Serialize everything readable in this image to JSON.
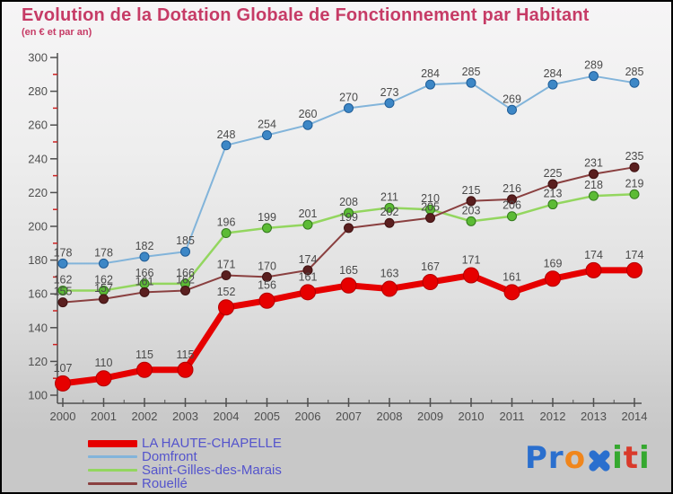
{
  "header": {
    "title": "Evolution de la Dotation Globale de Fonctionnement par Habitant",
    "subtitle": "(en € et par an)",
    "title_color": "#c63b66"
  },
  "chart_data": {
    "type": "line",
    "title": "Evolution de la Dotation Globale de Fonctionnement par Habitant",
    "subtitle": "(en € et par an)",
    "xlabel": "",
    "ylabel": "",
    "x": [
      2000,
      2001,
      2002,
      2003,
      2004,
      2005,
      2006,
      2007,
      2008,
      2009,
      2010,
      2011,
      2012,
      2013,
      2014
    ],
    "ylim": [
      100,
      300
    ],
    "y_major_step": 20,
    "grid": false,
    "legend_position": "bottom-left",
    "axis_color": "#4f4f4f",
    "minor_tick_color": "#cc2222",
    "value_label_color": "#4a4a4a",
    "series": [
      {
        "name": "LA HAUTE-CHAPELLE",
        "values": [
          107,
          110,
          115,
          115,
          152,
          156,
          161,
          165,
          163,
          167,
          171,
          161,
          169,
          174,
          174
        ],
        "line_color": "#e60000",
        "line_width": 7,
        "dot_fill": "#e60000",
        "dot_stroke": "#b30000",
        "dot_radius": 8.5,
        "label_dy": -13,
        "z": 4,
        "swatch_thickness": 8
      },
      {
        "name": "Domfront",
        "values": [
          178,
          178,
          182,
          185,
          248,
          254,
          260,
          270,
          273,
          284,
          285,
          269,
          284,
          289,
          285
        ],
        "line_color": "#82b4da",
        "line_width": 2,
        "dot_fill": "#3d87c6",
        "dot_stroke": "#1f5c96",
        "dot_radius": 5,
        "label_dy": -8,
        "z": 1,
        "swatch_thickness": 3
      },
      {
        "name": "Saint-Gilles-des-Marais",
        "values": [
          162,
          162,
          166,
          166,
          196,
          199,
          201,
          208,
          211,
          210,
          203,
          206,
          213,
          218,
          219
        ],
        "line_color": "#93d65f",
        "line_width": 2.5,
        "dot_fill": "#5cbb35",
        "dot_stroke": "#33791c",
        "dot_radius": 5,
        "label_dy": -8,
        "z": 2,
        "swatch_thickness": 3
      },
      {
        "name": "Rouellé",
        "values": [
          155,
          157,
          161,
          162,
          171,
          170,
          174,
          199,
          202,
          205,
          215,
          216,
          225,
          231,
          235
        ],
        "line_color": "#8a4040",
        "line_width": 2,
        "dot_fill": "#5a1f1f",
        "dot_stroke": "#401212",
        "dot_radius": 5,
        "label_dy": -8,
        "z": 3,
        "swatch_thickness": 3
      }
    ]
  },
  "legend": {
    "text_color": "#5454cc"
  },
  "logo": {
    "letters": [
      {
        "ch": "P",
        "color": "#2a6fce"
      },
      {
        "ch": "r",
        "color": "#2a6fce"
      },
      {
        "ch": "o",
        "color": "#f0861c"
      },
      {
        "ch": "x",
        "color": "#2a6fce",
        "style": "cross"
      },
      {
        "ch": "i",
        "color": "#35a82f"
      },
      {
        "ch": "t",
        "color": "#d93a2b"
      },
      {
        "ch": "i",
        "color": "#35a82f"
      }
    ]
  }
}
